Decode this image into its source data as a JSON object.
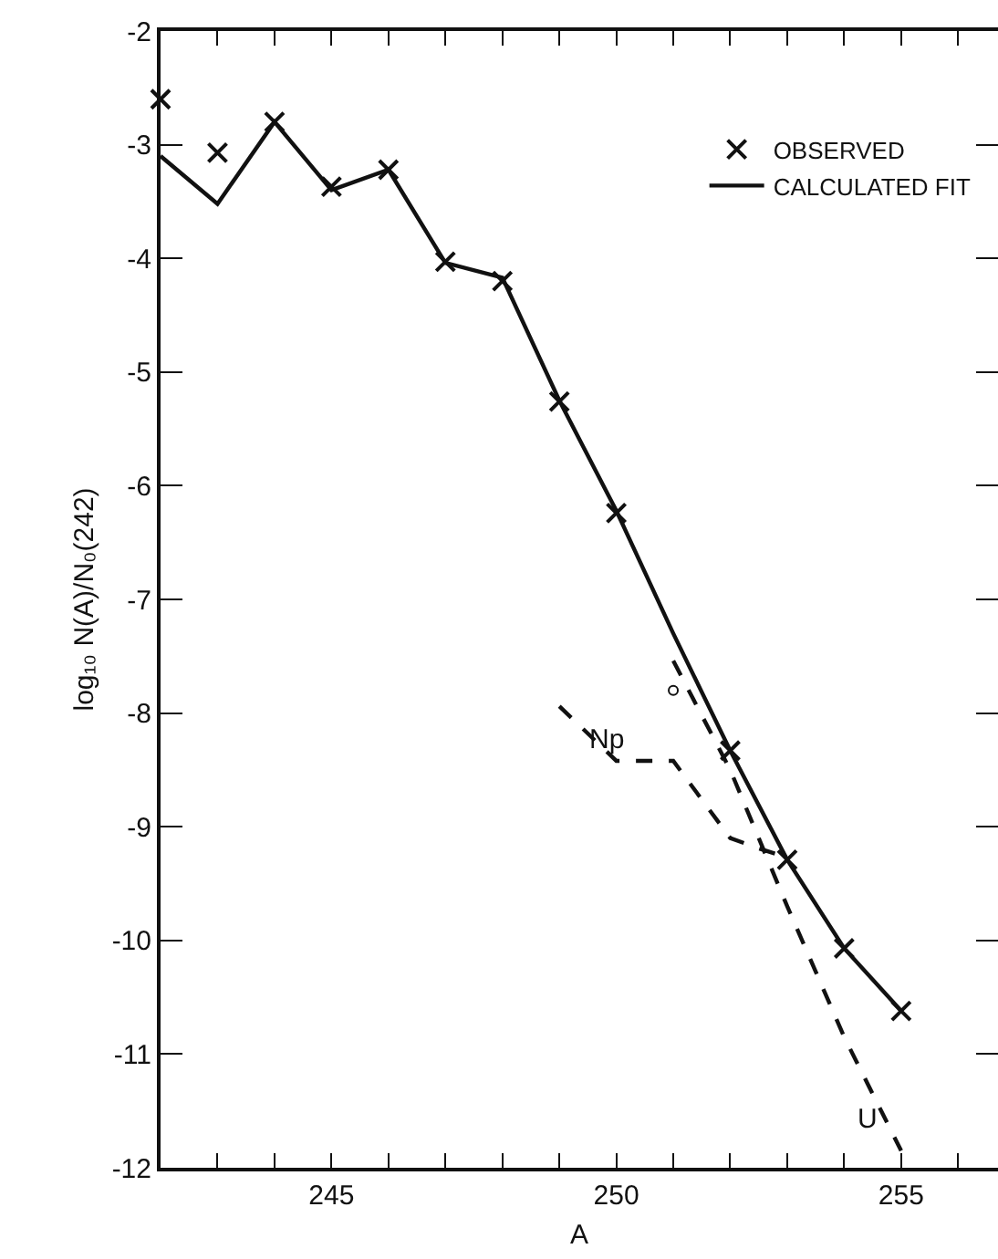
{
  "chart_data": {
    "type": "line",
    "xlabel": "A",
    "ylabel": "log₁₀ N(A)/N₀(242)",
    "xlim": [
      242,
      256.7
    ],
    "xticks": [
      {
        "value": 243,
        "label": null
      },
      {
        "value": 244,
        "label": null
      },
      245,
      {
        "value": 246,
        "label": null
      },
      {
        "value": 247,
        "label": null
      },
      {
        "value": 248,
        "label": null
      },
      {
        "value": 249,
        "label": null
      },
      250,
      {
        "value": 251,
        "label": null
      },
      {
        "value": 252,
        "label": null
      },
      {
        "value": 253,
        "label": null
      },
      {
        "value": 254,
        "label": null
      },
      255,
      {
        "value": 256,
        "label": null
      }
    ],
    "ylim": [
      -12,
      -2
    ],
    "yticks": [
      -2,
      -3,
      -4,
      -5,
      -6,
      -7,
      -8,
      -9,
      -10,
      -11,
      -12
    ],
    "grid": false,
    "legend": "top right",
    "series": [
      {
        "name": "OBSERVED",
        "type": "scatter",
        "marker": "cross",
        "color": "#111111",
        "x": [
          242,
          243,
          244,
          245,
          246,
          247,
          248,
          249,
          250,
          252,
          253,
          254,
          255
        ],
        "values": [
          -2.6,
          -3.07,
          -2.8,
          -3.37,
          -3.22,
          -4.03,
          -4.2,
          -5.26,
          -6.24,
          -8.33,
          -9.29,
          -10.07,
          -10.62
        ]
      },
      {
        "name": "CALCULATED FIT",
        "line_style": "solid",
        "color": "#111111",
        "x": [
          242,
          243,
          244,
          245,
          246,
          247,
          248,
          249,
          250,
          251,
          252,
          253,
          254,
          255
        ],
        "values": [
          -3.1,
          -3.52,
          -2.8,
          -3.4,
          -3.22,
          -4.04,
          -4.17,
          -5.25,
          -6.22,
          -7.3,
          -8.33,
          -9.29,
          -10.07,
          -10.62
        ]
      },
      {
        "line_style": "dashed",
        "color": "#111111",
        "x": [
          249,
          250,
          251,
          252,
          252.5,
          253
        ],
        "values": [
          -7.94,
          -8.42,
          -8.42,
          -9.1,
          -9.19,
          -9.27
        ]
      },
      {
        "line_style": "dashed",
        "color": "#111111",
        "x": [
          251,
          252,
          253,
          254,
          255
        ],
        "values": [
          -7.54,
          -8.5,
          -9.7,
          -10.85,
          -11.85
        ]
      },
      {
        "type": "scatter",
        "marker": "circle",
        "color": "#111111",
        "x": [
          251
        ],
        "values": [
          -7.8
        ]
      }
    ],
    "annotations": [
      {
        "text": "Np",
        "x": 249,
        "y": -7.94
      },
      {
        "text": "U",
        "x": 255,
        "y": -11.85
      }
    ]
  }
}
